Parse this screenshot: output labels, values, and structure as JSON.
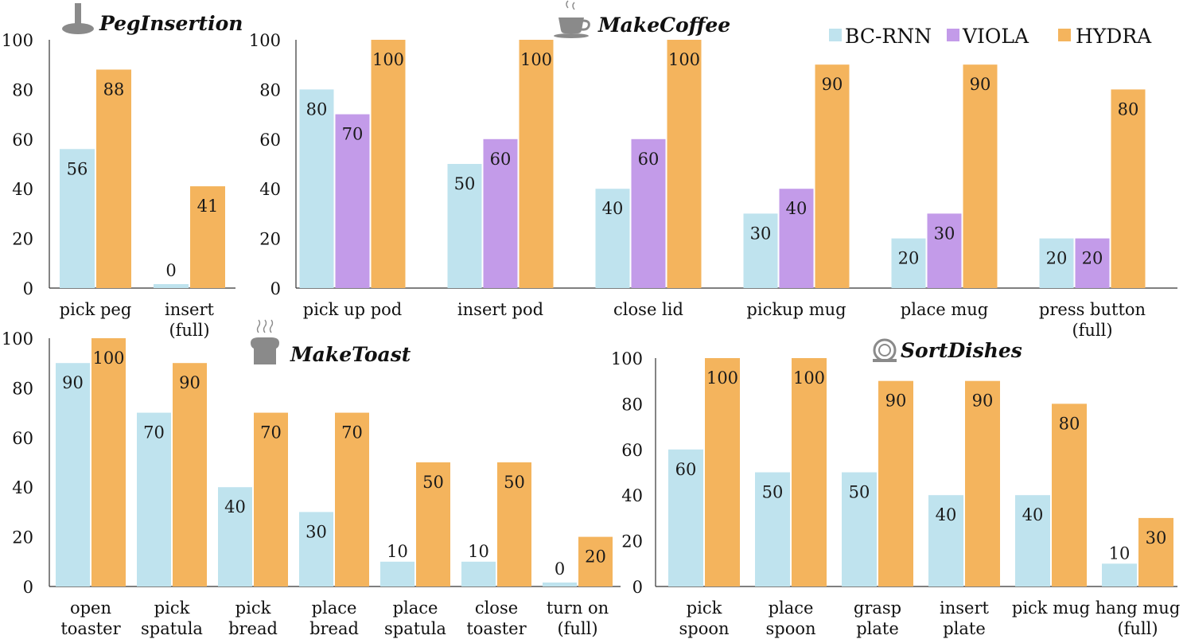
{
  "colors": {
    "bc_rnn": "#bfe3ee",
    "viola": "#c39be9",
    "hydra": "#f4b45d",
    "axis": "#333333",
    "icon": "#8a8a8a"
  },
  "legend": {
    "items": [
      {
        "key": "bc_rnn",
        "label": "BC-RNN"
      },
      {
        "key": "viola",
        "label": "VIOLA"
      },
      {
        "key": "hydra",
        "label": "HYDRA"
      }
    ]
  },
  "chart_data": [
    {
      "id": "peg",
      "type": "bar",
      "title": "PegInsertion",
      "icon": "peg-icon",
      "ylim": [
        0,
        100
      ],
      "yticks": [
        "0",
        "20",
        "40",
        "60",
        "80",
        "100"
      ],
      "categories": [
        [
          "pick peg"
        ],
        [
          "insert",
          "(full)"
        ]
      ],
      "series": [
        {
          "key": "bc_rnn",
          "name": "BC-RNN",
          "values": [
            56,
            0
          ]
        },
        {
          "key": "hydra",
          "name": "HYDRA",
          "values": [
            88,
            41
          ]
        }
      ]
    },
    {
      "id": "coffee",
      "type": "bar",
      "title": "MakeCoffee",
      "icon": "coffee-cup-icon",
      "ylim": [
        0,
        100
      ],
      "yticks": [
        "0",
        "20",
        "40",
        "60",
        "80",
        "100"
      ],
      "categories": [
        [
          "pick up pod"
        ],
        [
          "insert pod"
        ],
        [
          "close lid"
        ],
        [
          "pickup mug"
        ],
        [
          "place mug"
        ],
        [
          "press button",
          "(full)"
        ]
      ],
      "series": [
        {
          "key": "bc_rnn",
          "name": "BC-RNN",
          "values": [
            80,
            50,
            40,
            30,
            20,
            20
          ]
        },
        {
          "key": "viola",
          "name": "VIOLA",
          "values": [
            70,
            60,
            60,
            40,
            30,
            20
          ]
        },
        {
          "key": "hydra",
          "name": "HYDRA",
          "values": [
            100,
            100,
            100,
            90,
            90,
            80
          ]
        }
      ]
    },
    {
      "id": "toast",
      "type": "bar",
      "title": "MakeToast",
      "icon": "toast-icon",
      "ylim": [
        0,
        100
      ],
      "yticks": [
        "0",
        "20",
        "40",
        "60",
        "80",
        "100"
      ],
      "categories": [
        [
          "open",
          "toaster"
        ],
        [
          "pick",
          "spatula"
        ],
        [
          "pick",
          "bread"
        ],
        [
          "place",
          "bread"
        ],
        [
          "place",
          "spatula"
        ],
        [
          "close",
          "toaster"
        ],
        [
          "turn on",
          "(full)"
        ]
      ],
      "series": [
        {
          "key": "bc_rnn",
          "name": "BC-RNN",
          "values": [
            90,
            70,
            40,
            30,
            10,
            10,
            0
          ]
        },
        {
          "key": "hydra",
          "name": "HYDRA",
          "values": [
            100,
            90,
            70,
            70,
            50,
            50,
            20
          ]
        }
      ]
    },
    {
      "id": "dishes",
      "type": "bar",
      "title": "SortDishes",
      "icon": "plate-icon",
      "ylim": [
        0,
        100
      ],
      "yticks": [
        "0",
        "20",
        "40",
        "60",
        "80",
        "100"
      ],
      "categories": [
        [
          "pick",
          "spoon"
        ],
        [
          "place",
          "spoon"
        ],
        [
          "grasp",
          "plate"
        ],
        [
          "insert",
          "plate"
        ],
        [
          "pick mug"
        ],
        [
          "hang mug",
          "(full)"
        ]
      ],
      "series": [
        {
          "key": "bc_rnn",
          "name": "BC-RNN",
          "values": [
            60,
            50,
            50,
            40,
            40,
            10
          ]
        },
        {
          "key": "hydra",
          "name": "HYDRA",
          "values": [
            100,
            100,
            90,
            90,
            80,
            30
          ]
        }
      ]
    }
  ]
}
